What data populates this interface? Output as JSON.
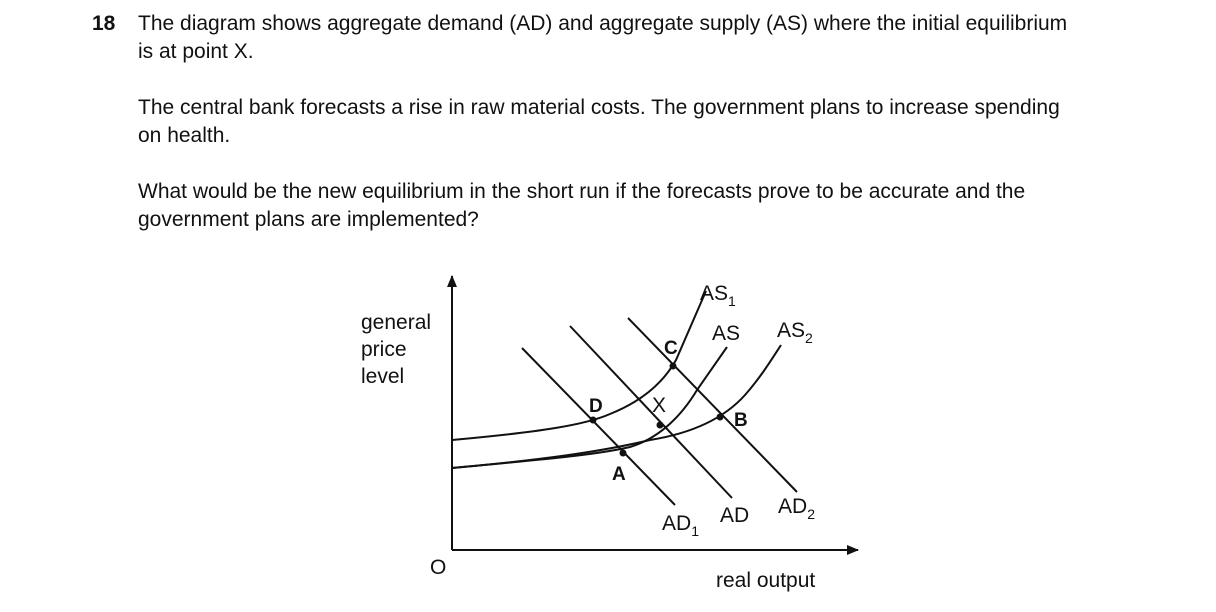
{
  "question": {
    "number": "18",
    "paragraphs": [
      [
        "The diagram shows aggregate demand (AD) and aggregate supply (AS) where the initial equilibrium",
        "is at point X."
      ],
      [
        "The central bank forecasts a rise in raw material costs. The government plans to increase spending",
        "on health."
      ],
      [
        "What would be the new equilibrium in the short run if the forecasts prove to be accurate and the",
        "government plans are implemented?"
      ]
    ]
  },
  "diagram": {
    "y_axis_label": [
      "general",
      "price",
      "level"
    ],
    "x_axis_label": "real output",
    "origin": "O",
    "curve_labels": [
      {
        "text": "AS",
        "sub": "1"
      },
      {
        "text": "AS"
      },
      {
        "text": "AS",
        "sub": "2"
      },
      {
        "text": "AD",
        "sub": "1"
      },
      {
        "text": "AD"
      },
      {
        "text": "AD",
        "sub": "2"
      }
    ],
    "points": [
      "D",
      "A",
      "X",
      "C",
      "B"
    ]
  }
}
